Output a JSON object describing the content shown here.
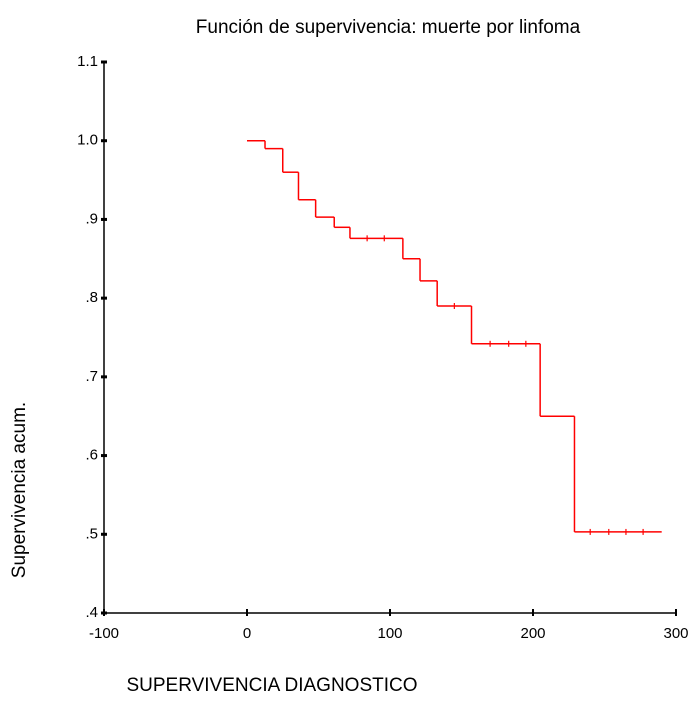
{
  "chart_data": {
    "type": "step",
    "title": "Función de supervivencia: muerte por linfoma",
    "x_label": "SUPERVIVENCIA DIAGNOSTICO",
    "y_label": "Supervivencia acum.",
    "series": [
      {
        "color": "#ff0000",
        "x": [
          0,
          12.6,
          25,
          36,
          48,
          61,
          72,
          109,
          121,
          133,
          157,
          205,
          229,
          290
        ],
        "values": [
          1.0,
          0.99,
          0.96,
          0.925,
          0.903,
          0.89,
          0.876,
          0.85,
          0.822,
          0.79,
          0.742,
          0.65,
          0.503,
          0.503
        ]
      }
    ],
    "censored": {
      "x": [
        84,
        96,
        145,
        170,
        183,
        195,
        240,
        253,
        265,
        277
      ],
      "values": [
        0.876,
        0.876,
        0.79,
        0.742,
        0.742,
        0.742,
        0.503,
        0.503,
        0.503,
        0.503
      ]
    },
    "xlim": [
      -100,
      300
    ],
    "xticks": [
      -100,
      0,
      100,
      200,
      300
    ],
    "ylim": [
      0.4,
      1.1
    ],
    "yticks": [
      {
        "value": 0.4,
        "label": ".4"
      },
      {
        "value": 0.5,
        "label": ".5"
      },
      {
        "value": 0.6,
        "label": ".6"
      },
      {
        "value": 0.7,
        "label": ".7"
      },
      {
        "value": 0.8,
        "label": ".8"
      },
      {
        "value": 0.9,
        "label": ".9"
      },
      {
        "value": 1.0,
        "label": "1.0"
      },
      1.1
    ]
  }
}
